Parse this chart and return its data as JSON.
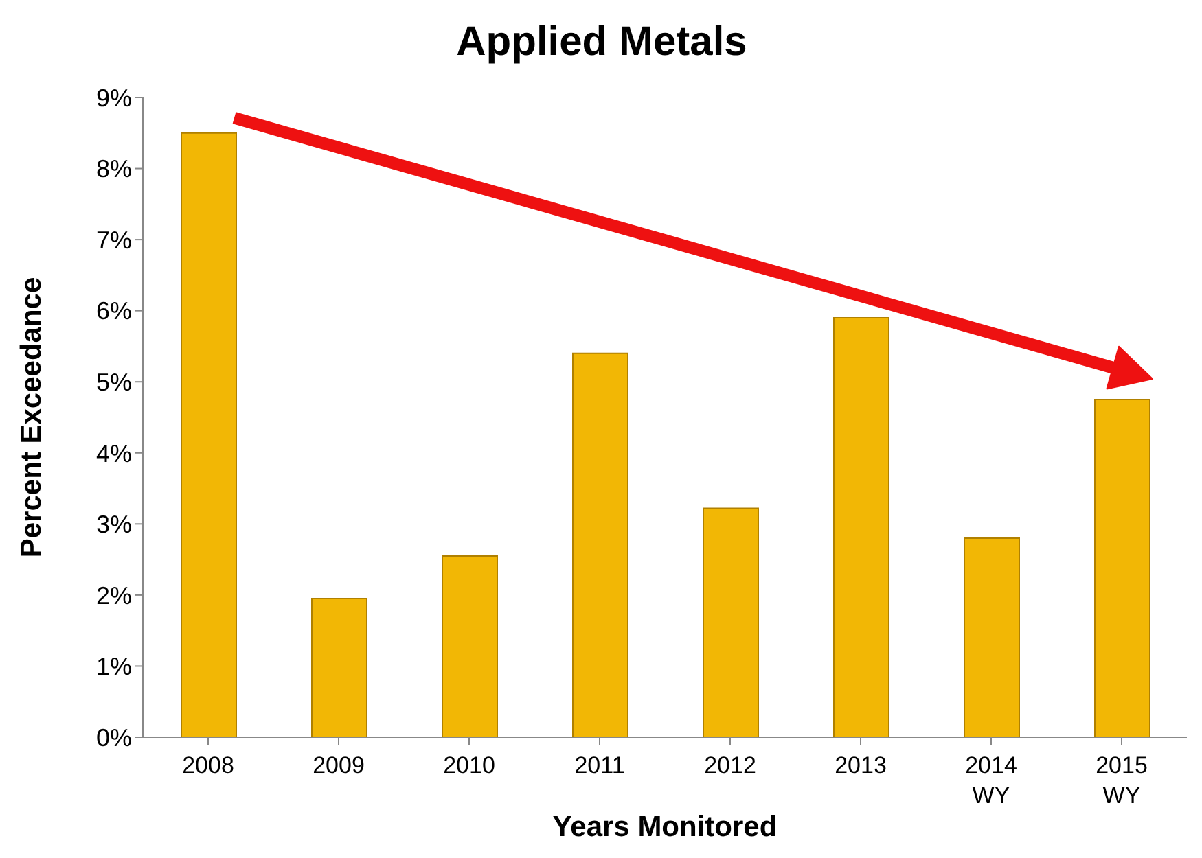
{
  "chart_data": {
    "type": "bar",
    "title": "Applied Metals",
    "xlabel": "Years Monitored",
    "ylabel": "Percent Exceedance",
    "categories": [
      "2008",
      "2009",
      "2010",
      "2011",
      "2012",
      "2013",
      "2014\nWY",
      "2015\nWY"
    ],
    "values": [
      8.5,
      1.95,
      2.55,
      5.4,
      3.22,
      5.9,
      2.8,
      4.75
    ],
    "color": "#f2b705",
    "ylim": [
      0,
      9
    ],
    "yticks": [
      {
        "value": 0,
        "label": "0%"
      },
      {
        "value": 1,
        "label": "1%"
      },
      {
        "value": 2,
        "label": "2%"
      },
      {
        "value": 3,
        "label": "3%"
      },
      {
        "value": 4,
        "label": "4%"
      },
      {
        "value": 5,
        "label": "5%"
      },
      {
        "value": 6,
        "label": "6%"
      },
      {
        "value": 7,
        "label": "7%"
      },
      {
        "value": 8,
        "label": "8%"
      },
      {
        "value": 9,
        "label": "9%"
      }
    ],
    "grid": false,
    "legend": false
  }
}
